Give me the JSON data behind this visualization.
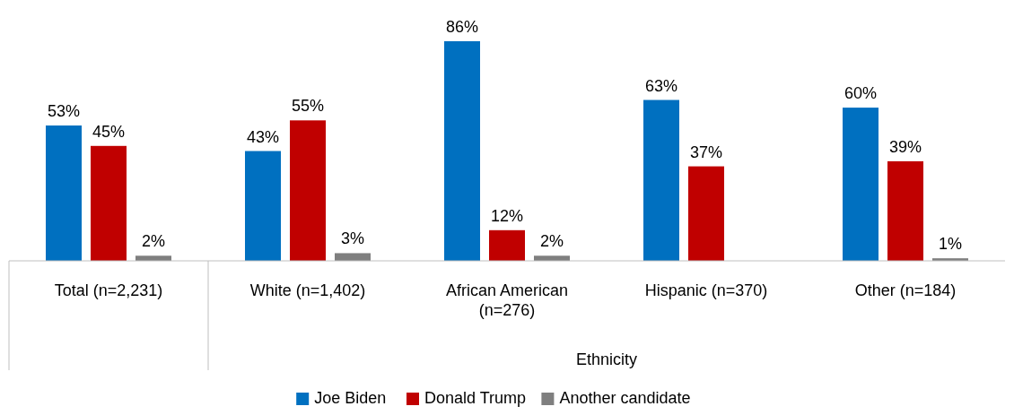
{
  "chart_data": {
    "type": "bar",
    "categories": [
      "Total (n=2,231)",
      "White (n=1,402)",
      "African American (n=276)",
      "Hispanic (n=370)",
      "Other (n=184)"
    ],
    "series": [
      {
        "name": "Joe Biden",
        "color": "#0070c0",
        "values": [
          53,
          43,
          86,
          63,
          60
        ],
        "value_labels": [
          "53%",
          "43%",
          "86%",
          "63%",
          "60%"
        ]
      },
      {
        "name": "Donald Trump",
        "color": "#c00000",
        "values": [
          45,
          55,
          12,
          37,
          39
        ],
        "value_labels": [
          "45%",
          "55%",
          "12%",
          "37%",
          "39%"
        ]
      },
      {
        "name": "Another candidate",
        "color": "#7f7f7f",
        "values": [
          2,
          3,
          2,
          null,
          1
        ],
        "value_labels": [
          "2%",
          "3%",
          "2%",
          null,
          "1%"
        ]
      }
    ],
    "annotations": [
      "Ethnicity"
    ],
    "legend": "bottom",
    "grid": false
  }
}
